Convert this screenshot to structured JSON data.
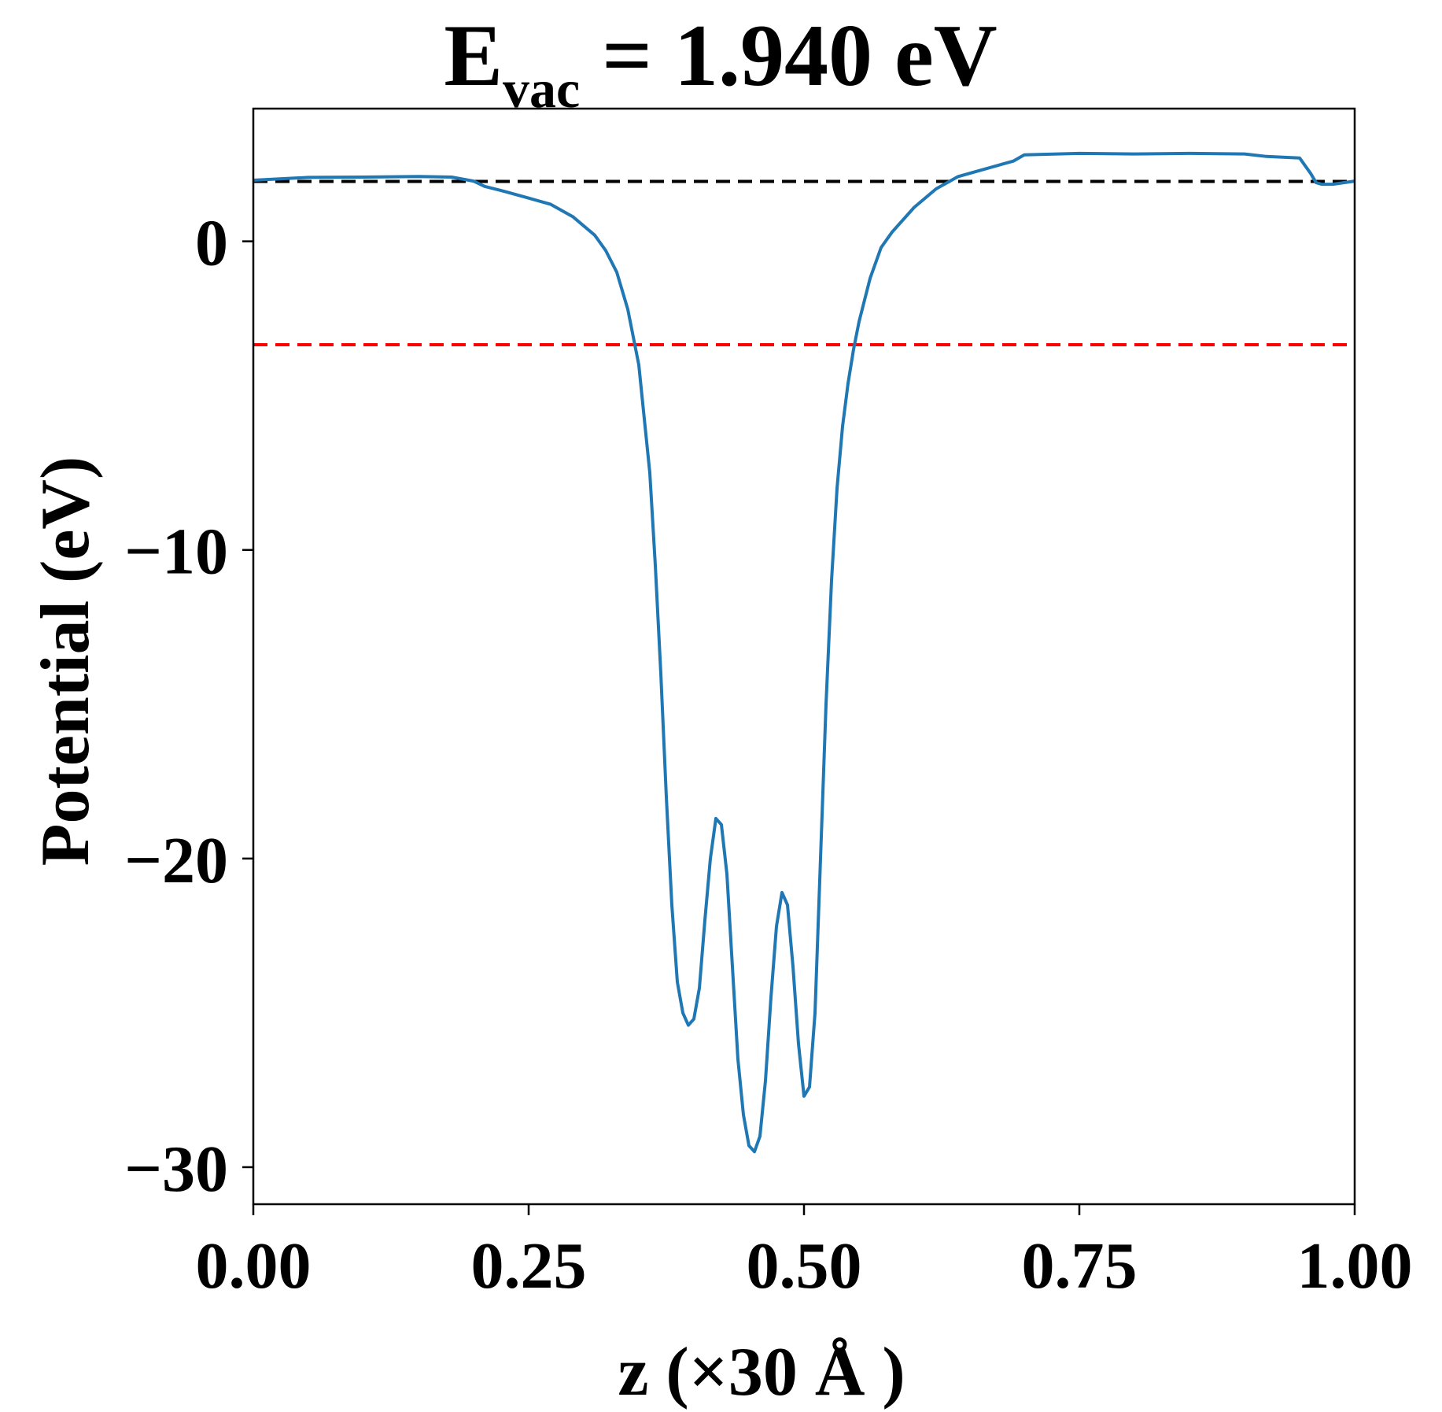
{
  "chart_data": {
    "type": "line",
    "title": {
      "main": "E",
      "subscript": "vac",
      "rest": " = 1.940 eV"
    },
    "xlabel": "z (×30 Å )",
    "ylabel": "Potential (eV)",
    "xlim": [
      0,
      1
    ],
    "ylim": [
      -31.2,
      4.3
    ],
    "x_ticks": [
      0,
      0.25,
      0.5,
      0.75,
      1.0
    ],
    "x_tick_labels": [
      "0.00",
      "0.25",
      "0.50",
      "0.75",
      "1.00"
    ],
    "y_ticks": [
      0,
      -10,
      -20,
      -30
    ],
    "y_tick_labels": [
      "0",
      "−10",
      "−20",
      "−30"
    ],
    "grid": false,
    "legend": "none",
    "reference_lines": [
      {
        "name": "vacuum-level",
        "y": 1.94,
        "color": "#000000",
        "style": "dashed"
      },
      {
        "name": "fermi-level",
        "y": -3.35,
        "color": "#ff0000",
        "style": "dashed"
      }
    ],
    "series": [
      {
        "color": "#1f77b4",
        "points": [
          [
            0.0,
            1.98
          ],
          [
            0.05,
            2.07
          ],
          [
            0.1,
            2.08
          ],
          [
            0.15,
            2.1
          ],
          [
            0.18,
            2.08
          ],
          [
            0.2,
            1.95
          ],
          [
            0.21,
            1.78
          ],
          [
            0.23,
            1.6
          ],
          [
            0.25,
            1.4
          ],
          [
            0.27,
            1.2
          ],
          [
            0.29,
            0.8
          ],
          [
            0.31,
            0.2
          ],
          [
            0.32,
            -0.3
          ],
          [
            0.33,
            -1.0
          ],
          [
            0.34,
            -2.2
          ],
          [
            0.35,
            -4.0
          ],
          [
            0.36,
            -7.5
          ],
          [
            0.365,
            -10.5
          ],
          [
            0.37,
            -14.0
          ],
          [
            0.375,
            -18.0
          ],
          [
            0.38,
            -21.5
          ],
          [
            0.385,
            -24.0
          ],
          [
            0.39,
            -25.0
          ],
          [
            0.395,
            -25.4
          ],
          [
            0.4,
            -25.2
          ],
          [
            0.405,
            -24.2
          ],
          [
            0.41,
            -22.0
          ],
          [
            0.415,
            -20.0
          ],
          [
            0.42,
            -18.7
          ],
          [
            0.425,
            -18.9
          ],
          [
            0.43,
            -20.5
          ],
          [
            0.435,
            -23.5
          ],
          [
            0.44,
            -26.5
          ],
          [
            0.445,
            -28.3
          ],
          [
            0.45,
            -29.3
          ],
          [
            0.455,
            -29.5
          ],
          [
            0.46,
            -29.0
          ],
          [
            0.465,
            -27.2
          ],
          [
            0.47,
            -24.5
          ],
          [
            0.475,
            -22.2
          ],
          [
            0.48,
            -21.1
          ],
          [
            0.485,
            -21.5
          ],
          [
            0.49,
            -23.5
          ],
          [
            0.495,
            -26.0
          ],
          [
            0.5,
            -27.7
          ],
          [
            0.505,
            -27.4
          ],
          [
            0.51,
            -25.0
          ],
          [
            0.515,
            -20.0
          ],
          [
            0.52,
            -15.0
          ],
          [
            0.525,
            -11.0
          ],
          [
            0.53,
            -8.0
          ],
          [
            0.535,
            -6.0
          ],
          [
            0.54,
            -4.6
          ],
          [
            0.545,
            -3.5
          ],
          [
            0.55,
            -2.6
          ],
          [
            0.56,
            -1.2
          ],
          [
            0.57,
            -0.2
          ],
          [
            0.58,
            0.3
          ],
          [
            0.6,
            1.1
          ],
          [
            0.62,
            1.7
          ],
          [
            0.64,
            2.1
          ],
          [
            0.66,
            2.3
          ],
          [
            0.68,
            2.5
          ],
          [
            0.69,
            2.6
          ],
          [
            0.7,
            2.8
          ],
          [
            0.75,
            2.85
          ],
          [
            0.8,
            2.83
          ],
          [
            0.85,
            2.85
          ],
          [
            0.9,
            2.83
          ],
          [
            0.92,
            2.75
          ],
          [
            0.95,
            2.7
          ],
          [
            0.96,
            2.2
          ],
          [
            0.965,
            1.9
          ],
          [
            0.97,
            1.85
          ],
          [
            0.98,
            1.85
          ],
          [
            1.0,
            1.95
          ]
        ]
      }
    ]
  }
}
